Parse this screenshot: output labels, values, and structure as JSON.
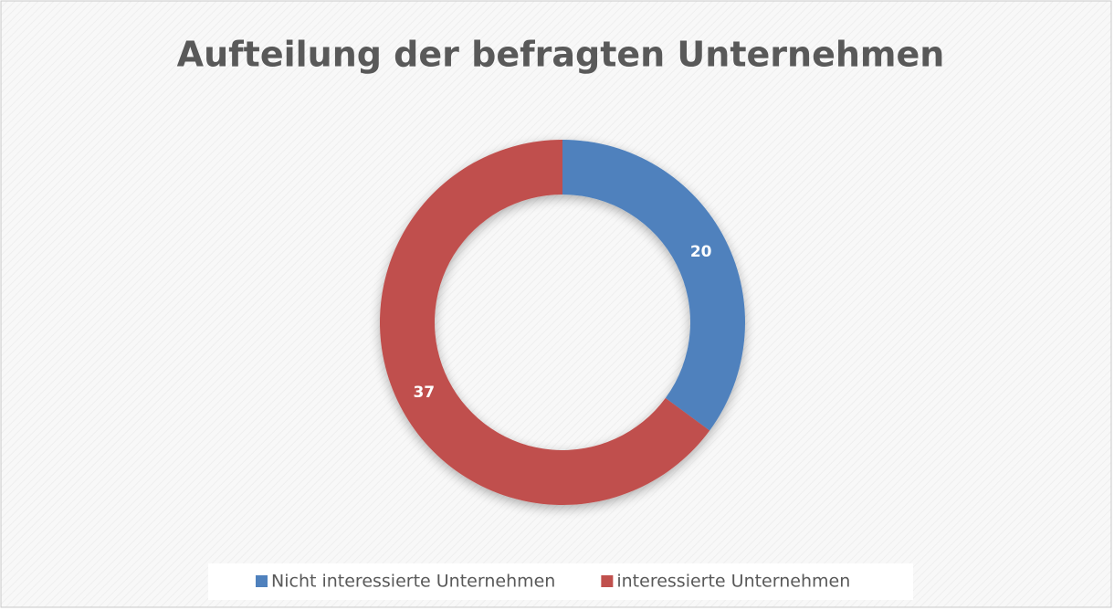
{
  "chart_data": {
    "type": "donut",
    "title": "Aufteilung der befragten Unternehmen",
    "categories": [
      "Nicht interessierte Unternehmen",
      "interessierte Unternehmen"
    ],
    "values": [
      20,
      37
    ],
    "colors": [
      "#4f81bd",
      "#c0504d"
    ],
    "legend": "bottom"
  }
}
